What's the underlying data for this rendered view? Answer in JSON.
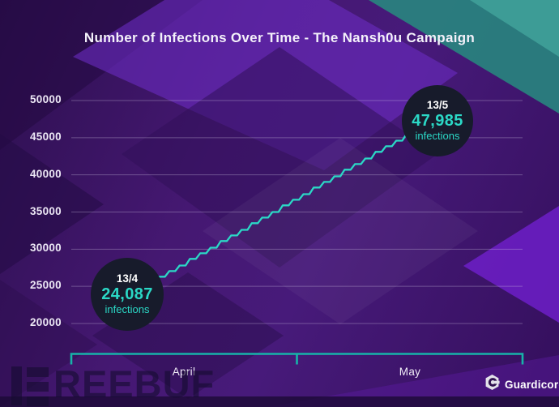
{
  "chart_data": {
    "type": "line",
    "title": "Number of Infections Over Time - The Nansh0u Campaign",
    "x_axis": {
      "start_date_label": "13/4",
      "end_date_label": "13/5",
      "month_sections": [
        "April",
        "May"
      ]
    },
    "y_axis": {
      "min": 20000,
      "max": 50000,
      "tick_interval": 5000,
      "ticks": [
        50000,
        45000,
        40000,
        35000,
        30000,
        25000,
        20000
      ]
    },
    "grid": true,
    "legend": false,
    "series": [
      {
        "name": "infections",
        "color": "#2bd8c6",
        "values": [
          24087,
          24650,
          25400,
          26300,
          27050,
          27800,
          28700,
          29450,
          30200,
          31100,
          31850,
          32600,
          33500,
          34250,
          35000,
          35900,
          36650,
          37400,
          38300,
          39050,
          39800,
          40700,
          41450,
          42200,
          43100,
          43850,
          44600,
          45500,
          46250,
          47100,
          47985
        ]
      }
    ],
    "annotations": [
      {
        "date": "13/4",
        "value": 24087,
        "value_label": "24,087",
        "unit": "infections"
      },
      {
        "date": "13/5",
        "value": 47985,
        "value_label": "47,985",
        "unit": "infections"
      }
    ]
  },
  "branding": {
    "logo_text": "Guardicore"
  },
  "watermark": {
    "brand": "FREEBUF",
    "text_after_logo": "REEBUF"
  },
  "colors": {
    "accent_teal": "#2bd8c6",
    "bracket_teal": "#17b3a9",
    "annotation_bg": "#171b2b",
    "background_purple": "#44156f",
    "teal_corner": "#2a7f7e",
    "bright_purple": "#6d1fc8"
  }
}
